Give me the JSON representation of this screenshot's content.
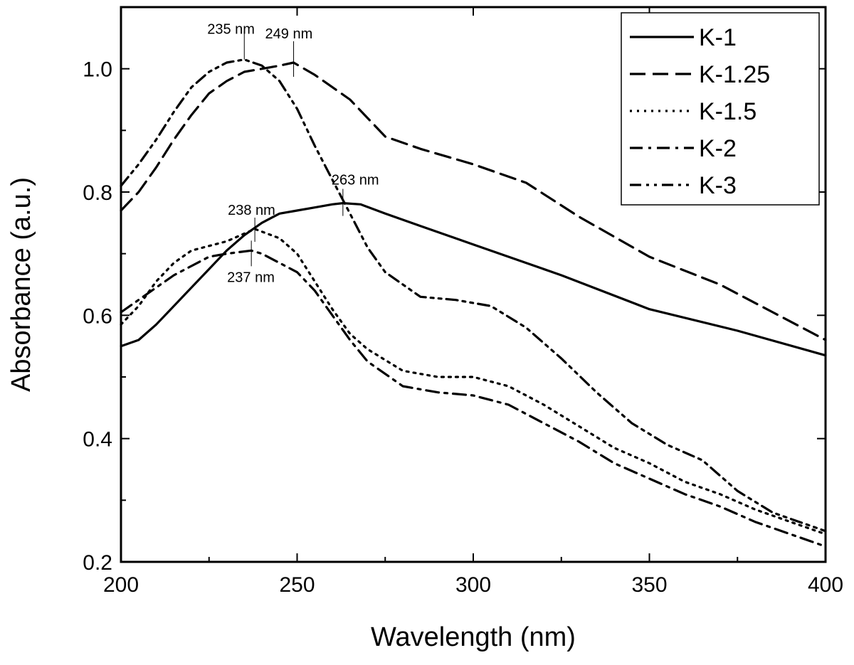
{
  "chart_data": {
    "type": "line",
    "xlabel": "Wavelength (nm)",
    "ylabel": "Absorbance (a.u.)",
    "xlim": [
      200,
      400
    ],
    "ylim": [
      0.2,
      1.1
    ],
    "x_ticks": [
      200,
      250,
      300,
      350,
      400
    ],
    "x_tick_labels": [
      "200",
      "250",
      "300",
      "350",
      "400"
    ],
    "y_ticks": [
      0.2,
      0.4,
      0.6,
      0.8,
      1.0
    ],
    "y_tick_labels": [
      "0.2",
      "0.4",
      "0.6",
      "0.8",
      "1.0"
    ],
    "grid": false,
    "legend_position": "top-right",
    "series": [
      {
        "name": "K-1",
        "dash": "solid",
        "points": [
          [
            200,
            0.55
          ],
          [
            205,
            0.56
          ],
          [
            210,
            0.585
          ],
          [
            215,
            0.615
          ],
          [
            220,
            0.645
          ],
          [
            225,
            0.675
          ],
          [
            230,
            0.705
          ],
          [
            235,
            0.73
          ],
          [
            240,
            0.75
          ],
          [
            245,
            0.765
          ],
          [
            250,
            0.77
          ],
          [
            255,
            0.775
          ],
          [
            260,
            0.78
          ],
          [
            263,
            0.782
          ],
          [
            268,
            0.78
          ],
          [
            275,
            0.765
          ],
          [
            285,
            0.745
          ],
          [
            300,
            0.715
          ],
          [
            325,
            0.665
          ],
          [
            350,
            0.61
          ],
          [
            375,
            0.575
          ],
          [
            400,
            0.535
          ]
        ]
      },
      {
        "name": "K-1.25",
        "dash": "dash",
        "points": [
          [
            200,
            0.77
          ],
          [
            205,
            0.8
          ],
          [
            210,
            0.84
          ],
          [
            215,
            0.885
          ],
          [
            220,
            0.925
          ],
          [
            225,
            0.96
          ],
          [
            230,
            0.98
          ],
          [
            235,
            0.995
          ],
          [
            240,
            1.0
          ],
          [
            245,
            1.005
          ],
          [
            249,
            1.01
          ],
          [
            255,
            0.99
          ],
          [
            265,
            0.95
          ],
          [
            275,
            0.89
          ],
          [
            285,
            0.87
          ],
          [
            300,
            0.845
          ],
          [
            315,
            0.815
          ],
          [
            330,
            0.76
          ],
          [
            350,
            0.695
          ],
          [
            370,
            0.65
          ],
          [
            385,
            0.605
          ],
          [
            400,
            0.56
          ]
        ]
      },
      {
        "name": "K-1.5",
        "dash": "dot",
        "points": [
          [
            200,
            0.585
          ],
          [
            205,
            0.615
          ],
          [
            210,
            0.655
          ],
          [
            215,
            0.685
          ],
          [
            220,
            0.705
          ],
          [
            230,
            0.72
          ],
          [
            238,
            0.74
          ],
          [
            245,
            0.725
          ],
          [
            250,
            0.7
          ],
          [
            255,
            0.655
          ],
          [
            260,
            0.61
          ],
          [
            265,
            0.57
          ],
          [
            270,
            0.545
          ],
          [
            280,
            0.51
          ],
          [
            290,
            0.5
          ],
          [
            300,
            0.5
          ],
          [
            310,
            0.485
          ],
          [
            320,
            0.455
          ],
          [
            330,
            0.42
          ],
          [
            340,
            0.385
          ],
          [
            350,
            0.36
          ],
          [
            360,
            0.33
          ],
          [
            370,
            0.31
          ],
          [
            380,
            0.285
          ],
          [
            390,
            0.265
          ],
          [
            400,
            0.245
          ]
        ]
      },
      {
        "name": "K-2",
        "dash": "dashdot",
        "points": [
          [
            200,
            0.605
          ],
          [
            205,
            0.625
          ],
          [
            210,
            0.645
          ],
          [
            215,
            0.665
          ],
          [
            220,
            0.68
          ],
          [
            225,
            0.695
          ],
          [
            230,
            0.7
          ],
          [
            237,
            0.705
          ],
          [
            240,
            0.7
          ],
          [
            245,
            0.685
          ],
          [
            250,
            0.67
          ],
          [
            255,
            0.64
          ],
          [
            260,
            0.6
          ],
          [
            265,
            0.56
          ],
          [
            270,
            0.525
          ],
          [
            280,
            0.485
          ],
          [
            290,
            0.475
          ],
          [
            300,
            0.47
          ],
          [
            310,
            0.455
          ],
          [
            320,
            0.425
          ],
          [
            330,
            0.395
          ],
          [
            340,
            0.36
          ],
          [
            350,
            0.335
          ],
          [
            360,
            0.31
          ],
          [
            370,
            0.29
          ],
          [
            380,
            0.265
          ],
          [
            390,
            0.245
          ],
          [
            400,
            0.225
          ]
        ]
      },
      {
        "name": "K-3",
        "dash": "dashdotdot",
        "points": [
          [
            200,
            0.81
          ],
          [
            205,
            0.845
          ],
          [
            210,
            0.885
          ],
          [
            215,
            0.93
          ],
          [
            220,
            0.97
          ],
          [
            225,
            0.995
          ],
          [
            230,
            1.01
          ],
          [
            235,
            1.015
          ],
          [
            240,
            1.005
          ],
          [
            245,
            0.98
          ],
          [
            250,
            0.935
          ],
          [
            255,
            0.875
          ],
          [
            260,
            0.82
          ],
          [
            265,
            0.765
          ],
          [
            270,
            0.71
          ],
          [
            275,
            0.67
          ],
          [
            285,
            0.63
          ],
          [
            295,
            0.625
          ],
          [
            305,
            0.615
          ],
          [
            315,
            0.58
          ],
          [
            325,
            0.53
          ],
          [
            335,
            0.475
          ],
          [
            345,
            0.425
          ],
          [
            355,
            0.39
          ],
          [
            365,
            0.365
          ],
          [
            375,
            0.315
          ],
          [
            385,
            0.28
          ],
          [
            400,
            0.25
          ]
        ]
      }
    ],
    "annotations": [
      {
        "text": "235 nm",
        "x": 235,
        "y": 1.015,
        "label_dx": -52,
        "label_dy": -36,
        "line_dy": [
          -40,
          0
        ]
      },
      {
        "text": "249 nm",
        "x": 249,
        "y": 1.01,
        "label_dx": -40,
        "label_dy": -34,
        "line_dy": [
          -30,
          20
        ]
      },
      {
        "text": "263 nm",
        "x": 263,
        "y": 0.782,
        "label_dx": -16,
        "label_dy": -26,
        "line_dy": [
          -20,
          18
        ]
      },
      {
        "text": "238 nm",
        "x": 238,
        "y": 0.74,
        "label_dx": -38,
        "label_dy": -20,
        "line_dy": [
          -16,
          18
        ]
      },
      {
        "text": "237 nm",
        "x": 237,
        "y": 0.705,
        "label_dx": -34,
        "label_dy": 44,
        "line_dy": [
          -14,
          22
        ]
      }
    ]
  }
}
